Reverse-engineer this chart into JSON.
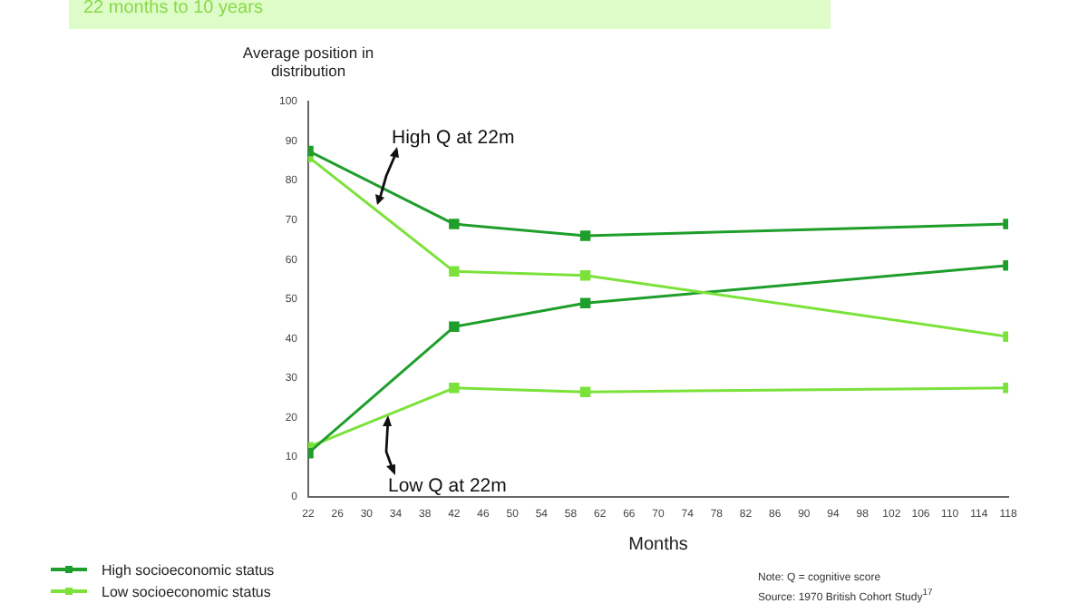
{
  "chart_data": {
    "type": "line",
    "title": "22 months to 10 years",
    "xlabel": "Months",
    "ylabel": "Average position in distribution",
    "x": [
      22,
      42,
      60,
      118
    ],
    "series": [
      {
        "name": "High socioeconomic status",
        "color": "#1e9e2a",
        "values": [
          87.5,
          69,
          66,
          69
        ]
      },
      {
        "name": "Low socioeconomic status",
        "color": "#7be23a",
        "values": [
          86,
          57,
          56,
          40.5
        ]
      },
      {
        "color": "#1e9e2a",
        "values": [
          11,
          43,
          49,
          58.5
        ]
      },
      {
        "color": "#7be23a",
        "values": [
          12.5,
          27.5,
          26.5,
          27.5
        ]
      }
    ],
    "xlim": [
      22,
      118
    ],
    "xticks": [
      22,
      26,
      30,
      34,
      38,
      42,
      46,
      50,
      54,
      58,
      62,
      66,
      70,
      74,
      78,
      82,
      86,
      90,
      94,
      98,
      102,
      106,
      110,
      114,
      118
    ],
    "ylim": [
      0,
      100
    ],
    "yticks": [
      0,
      10,
      20,
      30,
      40,
      50,
      60,
      70,
      80,
      90,
      100
    ],
    "grid": false,
    "legend": "bottom left",
    "marker": "square",
    "line_style": "solid",
    "annotations": [
      "High Q at 22m",
      "Low Q at 22m",
      "Note: Q = cognitive score",
      "Source: 1970 British Cohort Study$^{17}$"
    ]
  }
}
